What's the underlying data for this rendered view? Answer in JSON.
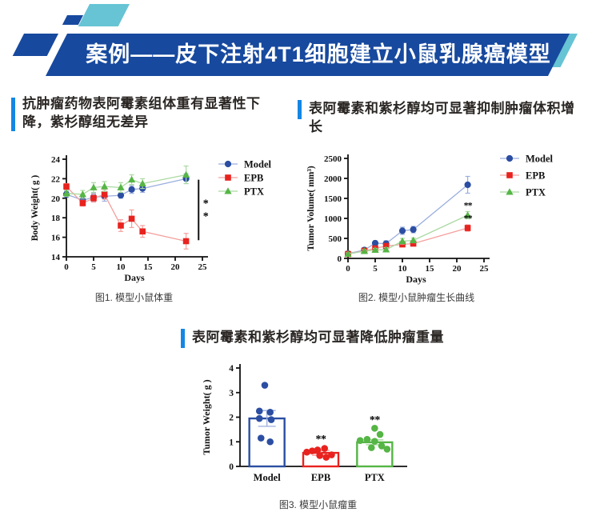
{
  "banner": {
    "title": "案例——皮下注射4T1细胞建立小鼠乳腺癌模型",
    "bg_color": "#17499e",
    "teal_color": "#66c4d4"
  },
  "sections": {
    "accent_color": "#1486e4",
    "left_title_lines": [
      "抗肿瘤药物表阿霉素组体重有显著性下",
      "降，紫杉醇组无差异"
    ],
    "right_title": "表阿霉素和紫杉醇均可显著抑制肿瘤体积增长",
    "mid_title": "表阿霉素和紫杉醇均可显著降低肿瘤重量"
  },
  "captions": {
    "fig1": "图1. 模型小鼠体重",
    "fig2": "图2. 模型小鼠肿瘤生长曲线",
    "fig3": "图3. 模型小鼠瘤重"
  },
  "chart_data": [
    {
      "type": "line",
      "name": "body-weight-chart",
      "xlabel": "Days",
      "ylabel": "Body Weight( g )",
      "xlim": [
        0,
        25
      ],
      "ylim": [
        14,
        24
      ],
      "xticks": [
        0,
        5,
        10,
        15,
        20,
        25
      ],
      "yticks": [
        14,
        16,
        18,
        20,
        22,
        24
      ],
      "x": [
        0,
        3,
        5,
        7,
        10,
        12,
        14,
        22
      ],
      "series": [
        {
          "name": "Model",
          "marker": "circle",
          "color": "#2b4ea2",
          "light": "#9aaede",
          "y": [
            20.4,
            19.8,
            20.1,
            20.2,
            20.3,
            20.9,
            21.0,
            22.0
          ],
          "err": [
            0.3,
            0.4,
            0.4,
            0.5,
            0.3,
            0.4,
            0.4,
            0.5
          ]
        },
        {
          "name": "EPB",
          "marker": "square",
          "color": "#e8221e",
          "light": "#f4a09d",
          "y": [
            21.2,
            19.5,
            20.0,
            20.4,
            17.2,
            17.9,
            16.6,
            15.6
          ],
          "err": [
            0.3,
            0.3,
            0.4,
            0.5,
            0.6,
            0.9,
            0.6,
            0.8
          ]
        },
        {
          "name": "PTX",
          "marker": "triangle",
          "color": "#55b545",
          "light": "#a9d9a0",
          "y": [
            20.5,
            20.4,
            21.1,
            21.2,
            21.1,
            21.9,
            21.5,
            22.4
          ],
          "err": [
            0.3,
            0.4,
            0.5,
            0.5,
            0.5,
            0.5,
            0.5,
            0.9
          ]
        }
      ],
      "sig_bracket": {
        "x": 24.3,
        "y1": 15.7,
        "y2": 21.9,
        "label": "**"
      },
      "legend_position": "right-top"
    },
    {
      "type": "line",
      "name": "tumor-volume-chart",
      "xlabel": "Days",
      "ylabel": "Tumor Volume( mm³)",
      "xlim": [
        0,
        25
      ],
      "ylim": [
        0,
        2500
      ],
      "xticks": [
        0,
        5,
        10,
        15,
        20,
        25
      ],
      "yticks": [
        0,
        500,
        1000,
        1500,
        2000,
        2500
      ],
      "x": [
        0,
        3,
        5,
        7,
        10,
        12,
        22
      ],
      "series": [
        {
          "name": "Model",
          "marker": "circle",
          "color": "#2b4ea2",
          "light": "#9aaede",
          "y": [
            120,
            210,
            380,
            370,
            690,
            720,
            1840
          ],
          "err": [
            40,
            60,
            60,
            70,
            90,
            80,
            210
          ]
        },
        {
          "name": "EPB",
          "marker": "square",
          "color": "#e8221e",
          "light": "#f4a09d",
          "y": [
            110,
            190,
            250,
            310,
            350,
            370,
            760
          ],
          "err": [
            30,
            40,
            50,
            50,
            60,
            60,
            80
          ]
        },
        {
          "name": "PTX",
          "marker": "triangle",
          "color": "#55b545",
          "light": "#a9d9a0",
          "y": [
            110,
            180,
            210,
            220,
            430,
            450,
            1080
          ],
          "err": [
            30,
            40,
            40,
            50,
            70,
            60,
            90
          ]
        }
      ],
      "annotations": [
        {
          "x": 22,
          "y": 1250,
          "text": "**"
        },
        {
          "x": 22,
          "y": 930,
          "text": "**"
        }
      ],
      "legend_position": "right-top"
    },
    {
      "type": "bar",
      "name": "tumor-weight-chart",
      "ylabel": "Tumor Weight( g )",
      "categories": [
        "Model",
        "EPB",
        "PTX"
      ],
      "ylim": [
        0,
        4
      ],
      "yticks": [
        0,
        1,
        2,
        3,
        4
      ],
      "bars": [
        {
          "value": 1.95,
          "err": 0.32,
          "color": "#2b4ea2",
          "light": "#9aaede",
          "sig": null,
          "points": [
            [
              -0.04,
              3.3
            ],
            [
              -0.14,
              2.25
            ],
            [
              0.06,
              2.2
            ],
            [
              -0.14,
              1.95
            ],
            [
              0.08,
              1.9
            ],
            [
              -0.11,
              1.15
            ],
            [
              0.06,
              1.0
            ]
          ]
        },
        {
          "value": 0.55,
          "err": 0.1,
          "color": "#e8221e",
          "light": "#f4a09d",
          "sig": {
            "y": 0.98,
            "text": "**"
          },
          "points": [
            [
              -0.26,
              0.58
            ],
            [
              -0.16,
              0.63
            ],
            [
              -0.06,
              0.67
            ],
            [
              0.07,
              0.73
            ],
            [
              -0.02,
              0.44
            ],
            [
              0.1,
              0.37
            ],
            [
              0.2,
              0.47
            ]
          ]
        },
        {
          "value": 0.98,
          "err": 0.1,
          "color": "#55b545",
          "light": "#a9d9a0",
          "sig": {
            "y": 1.75,
            "text": "**"
          },
          "points": [
            [
              0.0,
              1.55
            ],
            [
              0.1,
              1.3
            ],
            [
              -0.27,
              1.05
            ],
            [
              -0.14,
              1.1
            ],
            [
              0.0,
              1.02
            ],
            [
              0.13,
              0.83
            ],
            [
              -0.06,
              0.76
            ],
            [
              0.23,
              0.7
            ]
          ]
        }
      ]
    }
  ]
}
